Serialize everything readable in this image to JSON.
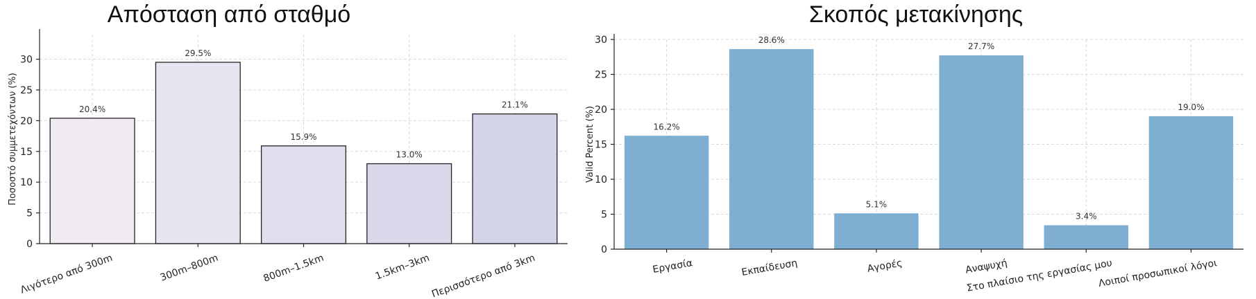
{
  "chart_data": [
    {
      "type": "bar",
      "title": "Απόσταση από σταθμό",
      "xlabel": "",
      "ylabel": "Ποσοστό συμμετεχόντων (%)",
      "ylim": [
        0,
        34
      ],
      "yticks": [
        0,
        5,
        10,
        15,
        20,
        25,
        30
      ],
      "grid": true,
      "categories": [
        "Λιγότερο από 300m",
        "300m–800m",
        "800m–1.5km",
        "1.5km–3km",
        "Περισσότερο από 3km"
      ],
      "values": [
        20.4,
        29.5,
        15.9,
        13.0,
        21.1
      ],
      "data_labels": [
        "20.4%",
        "29.5%",
        "15.9%",
        "13.0%",
        "21.1%"
      ],
      "colors": [
        "#f1ecf4",
        "#e9e4f1",
        "#e1def0",
        "#dad8ea",
        "#d3d4e7"
      ],
      "edge_color": "#222222"
    },
    {
      "type": "bar",
      "title": "Σκοπός μετακίνησης",
      "xlabel": "",
      "ylabel": "Valid Percent (%)",
      "ylim": [
        0,
        30
      ],
      "yticks": [
        0,
        5,
        10,
        15,
        20,
        25,
        30
      ],
      "grid": true,
      "categories": [
        "Εργασία",
        "Εκπαίδευση",
        "Αγορές",
        "Αναψυχή",
        "Στο πλαίσιο της εργασίας μου",
        "Λοιποί προσωπικοί λόγοι"
      ],
      "values": [
        16.2,
        28.6,
        5.1,
        27.7,
        3.4,
        19.0
      ],
      "data_labels": [
        "16.2%",
        "28.6%",
        "5.1%",
        "27.7%",
        "3.4%",
        "19.0%"
      ],
      "colors": [
        "#7eaed2"
      ],
      "edge_color": "#7eaed2"
    }
  ]
}
